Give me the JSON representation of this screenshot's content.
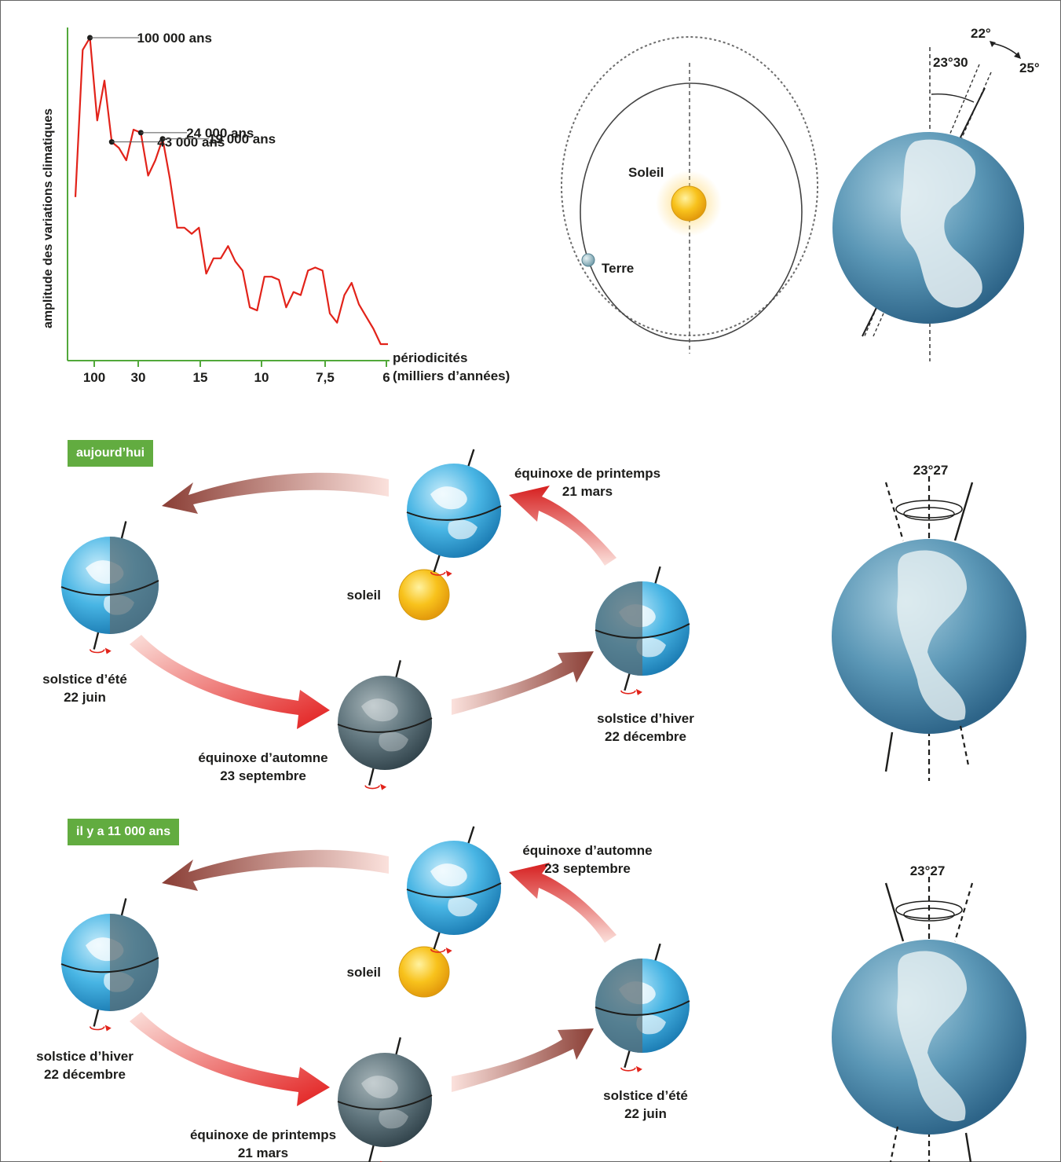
{
  "chart": {
    "ylabel": "amplitude des variations climatiques",
    "xlabel_line1": "périodicités",
    "xlabel_line2": "(milliers d’années)",
    "ticks": [
      "100",
      "30",
      "15",
      "10",
      "7,5",
      "6"
    ],
    "peaks": [
      "100 000 ans",
      "43 000 ans",
      "24 000 ans",
      "19 000 ans"
    ],
    "line_color": "#e2231a",
    "axis_color": "#52a83a"
  },
  "chart_data": {
    "type": "line",
    "title": "",
    "xlabel": "périodicités (milliers d’années)",
    "ylabel": "amplitude des variations climatiques",
    "x_ticks": [
      "100",
      "30",
      "15",
      "10",
      "7,5",
      "6"
    ],
    "annotations": [
      "100 000 ans",
      "43 000 ans",
      "24 000 ans",
      "19 000 ans"
    ],
    "series": [
      {
        "values": [
          0.48,
          0.96,
          1.0,
          0.73,
          0.86,
          0.66,
          0.64,
          0.6,
          0.7,
          0.69,
          0.55,
          0.6,
          0.67,
          0.54,
          0.38,
          0.38,
          0.36,
          0.38,
          0.23,
          0.28,
          0.28,
          0.32,
          0.27,
          0.24,
          0.12,
          0.11,
          0.22,
          0.22,
          0.21,
          0.12,
          0.17,
          0.16,
          0.24,
          0.25,
          0.24,
          0.1,
          0.07,
          0.16,
          0.2,
          0.13,
          0.09,
          0.05,
          0.0,
          0.0
        ]
      }
    ]
  },
  "orbit": {
    "sun_label": "Soleil",
    "earth_label": "Terre"
  },
  "obliquity": {
    "min": "22°",
    "mean": "23°30",
    "max": "25°"
  },
  "section_today": {
    "tag": "aujourd’hui",
    "sun": "soleil",
    "top_l1": "équinoxe de printemps",
    "top_l2": "21 mars",
    "left_l1": "solstice d’été",
    "left_l2": "22 juin",
    "right_l1": "solstice d’hiver",
    "right_l2": "22 décembre",
    "bottom_l1": "équinoxe d’automne",
    "bottom_l2": "23 septembre",
    "tilt": "23°27"
  },
  "section_past": {
    "tag": "il y a 11 000 ans",
    "sun": "soleil",
    "top_l1": "équinoxe d’automne",
    "top_l2": "23 septembre",
    "left_l1": "solstice d’hiver",
    "left_l2": "22 décembre",
    "right_l1": "solstice d’été",
    "right_l2": "22 juin",
    "bottom_l1": "équinoxe de printemps",
    "bottom_l2": "21 mars",
    "tilt": "23°27"
  },
  "colors": {
    "tag_bg": "#62ac40",
    "sun": "#f7c51c",
    "globe": "#4e8fae",
    "globe_bright": "#45b3e0"
  }
}
